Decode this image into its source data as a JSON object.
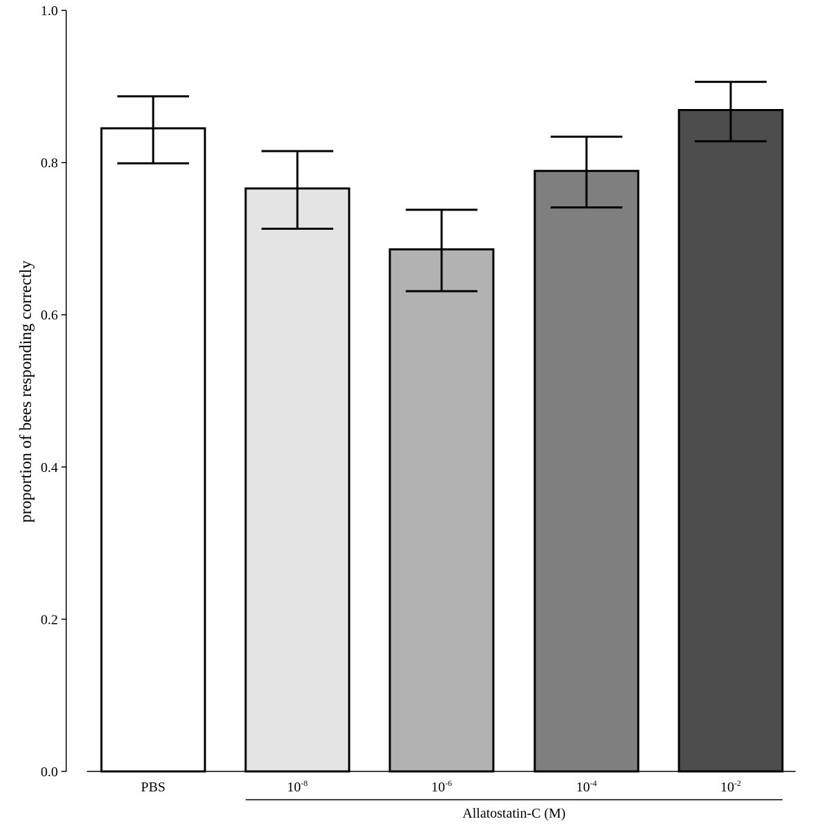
{
  "chart_data": {
    "type": "bar",
    "title": "",
    "xlabel": "",
    "ylabel": "proportion of bees responding correctly",
    "ylim": [
      0.0,
      1.0
    ],
    "yticks": [
      "0.0",
      "0.2",
      "0.4",
      "0.6",
      "0.8",
      "1.0"
    ],
    "ytick_values": [
      0.0,
      0.2,
      0.4,
      0.6,
      0.8,
      1.0
    ],
    "categories": [
      {
        "base": "PBS",
        "exp": ""
      },
      {
        "base": "10",
        "exp": "-8"
      },
      {
        "base": "10",
        "exp": "-6"
      },
      {
        "base": "10",
        "exp": "-4"
      },
      {
        "base": "10",
        "exp": "-2"
      }
    ],
    "values": [
      0.845,
      0.766,
      0.686,
      0.789,
      0.869
    ],
    "error_low": [
      0.799,
      0.713,
      0.631,
      0.741,
      0.828
    ],
    "error_high": [
      0.887,
      0.815,
      0.738,
      0.834,
      0.906
    ],
    "bar_colors": [
      "#ffffff",
      "#e4e4e4",
      "#b2b2b2",
      "#7f7f7f",
      "#4d4d4d"
    ],
    "group": {
      "label": "Allatostatin-C (M)",
      "from_index": 1,
      "to_index": 4
    },
    "grid": false,
    "legend": false
  }
}
